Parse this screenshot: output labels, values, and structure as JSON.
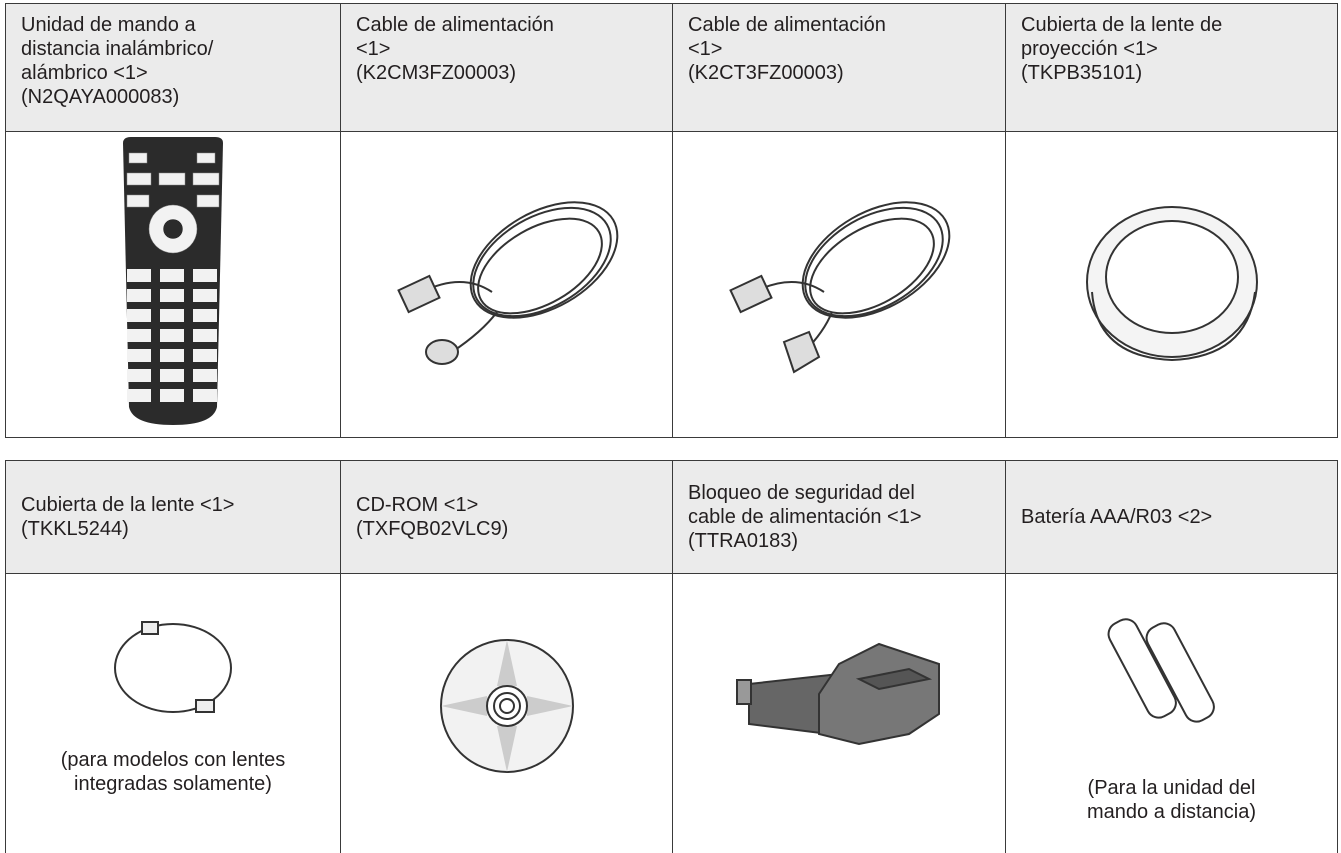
{
  "tables": [
    {
      "headers": [
        [
          "Unidad de mando a",
          "distancia inalámbrico/",
          "alámbrico <1>",
          "(N2QAYA000083)"
        ],
        [
          "Cable de alimentación",
          "<1>",
          "(K2CM3FZ00003)"
        ],
        [
          "Cable de alimentación",
          "<1>",
          "(K2CT3FZ00003)"
        ],
        [
          "Cubierta de la lente de",
          "proyección <1>",
          "(TKPB35101)"
        ]
      ]
    },
    {
      "headers": [
        [
          "Cubierta de la lente <1>",
          "(TKKL5244)"
        ],
        [
          "CD-ROM <1>",
          "(TXFQB02VLC9)"
        ],
        [
          "Bloqueo de seguridad del",
          "cable de alimentación <1>",
          "(TTRA0183)"
        ],
        [
          "Batería AAA/R03 <2>"
        ]
      ],
      "notes": [
        [
          "(para modelos con lentes",
          "integradas solamente)"
        ],
        [
          "(Para la unidad del",
          "mando a distancia)"
        ]
      ]
    }
  ]
}
